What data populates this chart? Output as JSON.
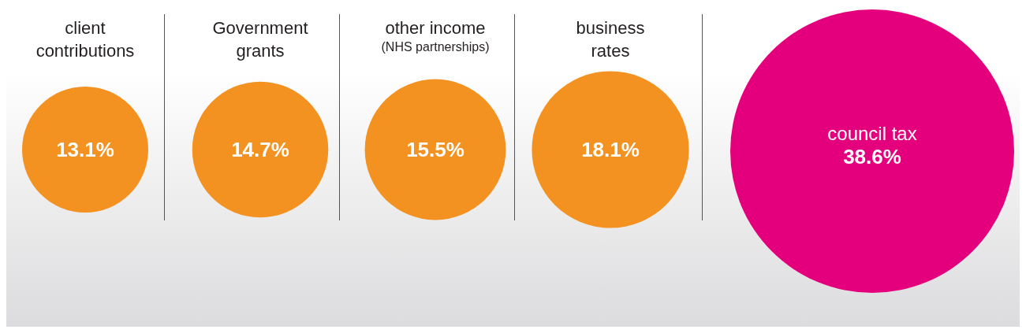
{
  "chart_data": {
    "type": "other",
    "categories": [
      "client contributions",
      "Government grants",
      "other income (NHS partnerships)",
      "business rates",
      "council tax"
    ],
    "values": [
      13.1,
      14.7,
      15.5,
      18.1,
      38.6
    ],
    "value_labels": [
      "13.1%",
      "14.7%",
      "15.5%",
      "18.1%",
      "38.6%"
    ],
    "colors": [
      "#f39220",
      "#f39220",
      "#f39220",
      "#f39220",
      "#e4007c"
    ]
  }
}
